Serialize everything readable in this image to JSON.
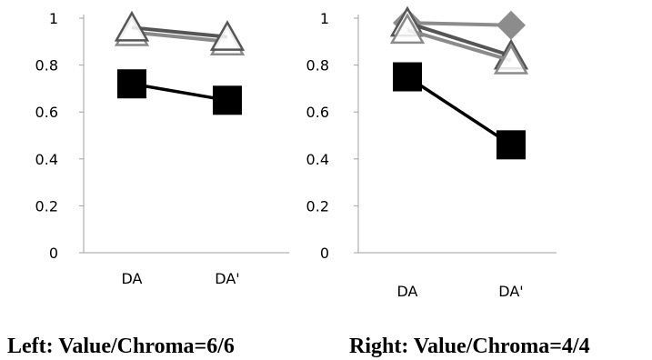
{
  "captions": {
    "left": "Left: Value/Chroma=6/6",
    "right": "Right: Value/Chroma=4/4"
  },
  "colors": {
    "black_series": "#000000",
    "dark_gray_series": "#555555",
    "light_gray_series": "#8a8a8a",
    "diamond_series": "#8c8c8c",
    "axis": "#a0a0a0"
  },
  "chart_data": [
    {
      "type": "line",
      "categories": [
        "DA",
        "DA'"
      ],
      "ylim": [
        0,
        1
      ],
      "yticks": [
        "0",
        "0.2",
        "0.4",
        "0.6",
        "0.8",
        "1"
      ],
      "grid": false,
      "series": [
        {
          "marker": "triangle",
          "color": "#8a8a8a",
          "values": [
            0.94,
            0.9
          ]
        },
        {
          "marker": "triangle",
          "color": "#555555",
          "values": [
            0.96,
            0.92
          ]
        },
        {
          "marker": "square",
          "color": "#000000",
          "values": [
            0.72,
            0.65
          ]
        }
      ]
    },
    {
      "type": "line",
      "categories": [
        "DA",
        "DA'"
      ],
      "ylim": [
        0,
        1
      ],
      "yticks": [
        "0",
        "0.2",
        "0.4",
        "0.6",
        "0.8",
        "1"
      ],
      "grid": false,
      "series": [
        {
          "marker": "diamond",
          "color": "#8c8c8c",
          "values": [
            0.98,
            0.97
          ]
        },
        {
          "marker": "triangle",
          "color": "#555555",
          "values": [
            0.98,
            0.84
          ]
        },
        {
          "marker": "triangle",
          "color": "#8a8a8a",
          "values": [
            0.95,
            0.82
          ]
        },
        {
          "marker": "square",
          "color": "#000000",
          "values": [
            0.75,
            0.46
          ]
        }
      ]
    }
  ]
}
